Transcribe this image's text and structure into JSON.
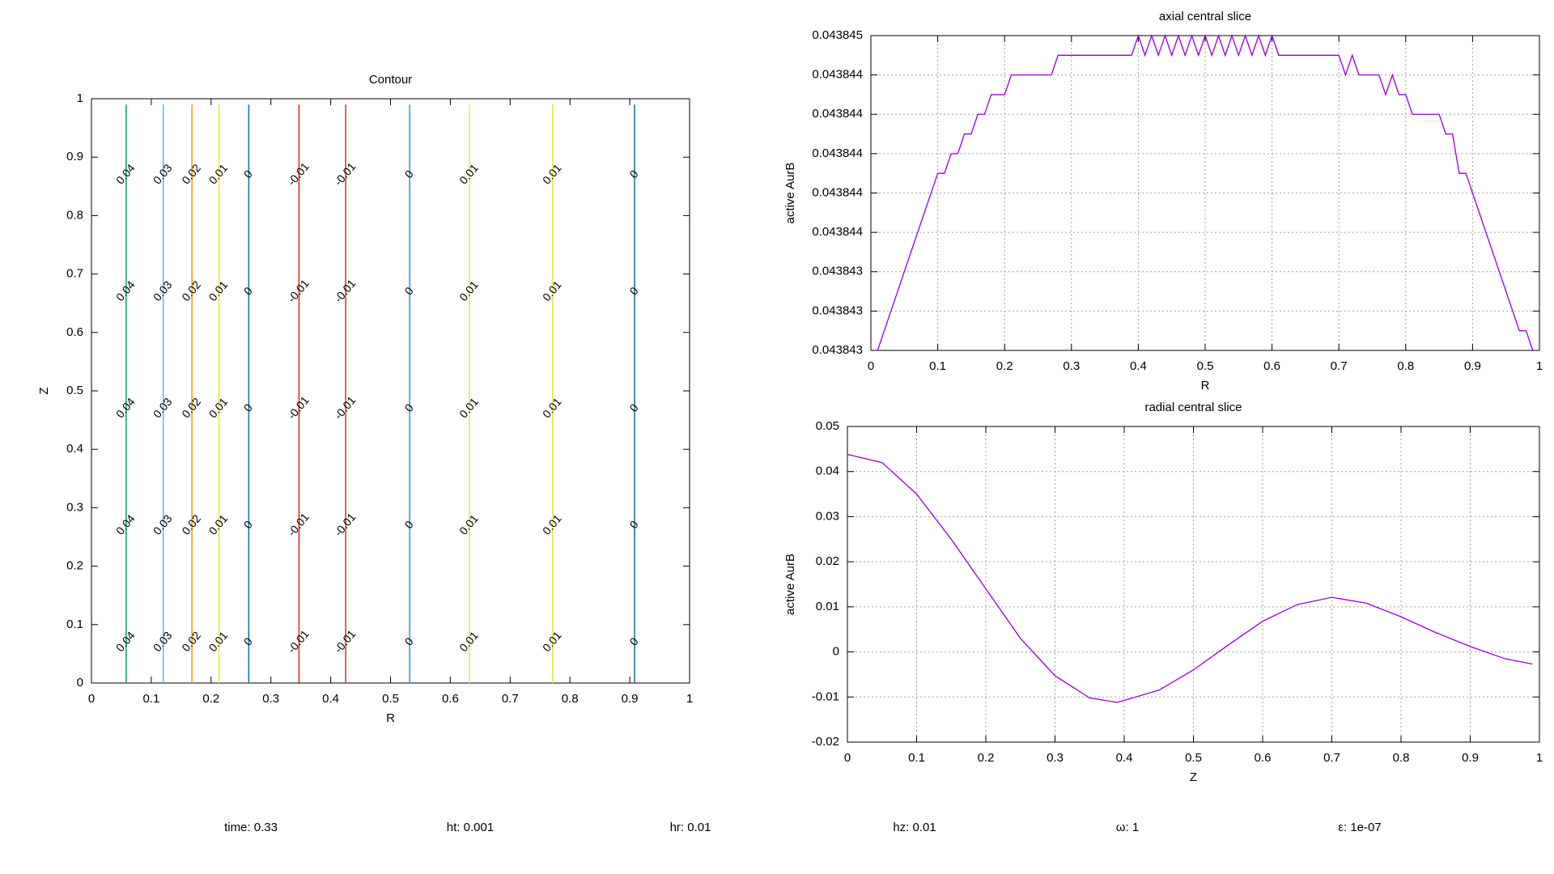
{
  "chart_data": [
    {
      "type": "contour",
      "title": "Contour",
      "xlabel": "R",
      "ylabel": "Z",
      "xlim": [
        0,
        1
      ],
      "ylim": [
        0,
        1
      ],
      "xticks": [
        0,
        0.1,
        0.2,
        0.3,
        0.4,
        0.5,
        0.6,
        0.7,
        0.8,
        0.9,
        1
      ],
      "yticks": [
        0,
        0.1,
        0.2,
        0.3,
        0.4,
        0.5,
        0.6,
        0.7,
        0.8,
        0.9,
        1
      ],
      "grid": false,
      "levels": [
        {
          "value": 0.04,
          "r": 0.058,
          "color": "#009e73"
        },
        {
          "value": 0.03,
          "r": 0.12,
          "color": "#56b4e9"
        },
        {
          "value": 0.02,
          "r": 0.168,
          "color": "#e69f00"
        },
        {
          "value": 0.01,
          "r": 0.213,
          "color": "#f0e442"
        },
        {
          "value": 0,
          "r": 0.263,
          "color": "#0072b2"
        },
        {
          "value": -0.01,
          "r": 0.347,
          "color": "#e51e10"
        },
        {
          "value": -0.01,
          "r": 0.425,
          "color": "#c0392b"
        },
        {
          "value": 0,
          "r": 0.532,
          "color": "#1f9fd8"
        },
        {
          "value": 0.01,
          "r": 0.632,
          "color": "#f0e442"
        },
        {
          "value": 0.01,
          "r": 0.771,
          "color": "#f0e442"
        },
        {
          "value": 0,
          "r": 0.908,
          "color": "#106a8a"
        }
      ]
    },
    {
      "type": "line",
      "title": "axial central slice",
      "xlabel": "R",
      "ylabel": "active AurB",
      "xlim": [
        0,
        1
      ],
      "ylim": [
        0.043843,
        0.0438446
      ],
      "xticks": [
        0,
        0.1,
        0.2,
        0.3,
        0.4,
        0.5,
        0.6,
        0.7,
        0.8,
        0.9,
        1
      ],
      "yticks": [
        0.043843,
        {
          "value": 0.0438432,
          "label": "0.043843"
        },
        {
          "value": 0.0438434,
          "label": "0.043843"
        },
        {
          "value": 0.0438436,
          "label": "0.043844"
        },
        {
          "value": 0.0438438,
          "label": "0.043844"
        },
        0.043844,
        {
          "value": 0.0438442,
          "label": "0.043844"
        },
        {
          "value": 0.0438444,
          "label": "0.043844"
        },
        {
          "value": 0.0438446,
          "label": "0.043845"
        }
      ],
      "grid": true,
      "color": "#9400d3",
      "x": [
        0.01,
        0.1,
        0.11,
        0.12,
        0.13,
        0.14,
        0.15,
        0.16,
        0.17,
        0.18,
        0.2,
        0.21,
        0.27,
        0.28,
        0.39,
        0.4,
        0.41,
        0.42,
        0.43,
        0.44,
        0.45,
        0.46,
        0.47,
        0.48,
        0.49,
        0.5,
        0.51,
        0.52,
        0.53,
        0.54,
        0.55,
        0.56,
        0.57,
        0.58,
        0.59,
        0.6,
        0.61,
        0.7,
        0.71,
        0.72,
        0.73,
        0.76,
        0.77,
        0.78,
        0.79,
        0.8,
        0.81,
        0.85,
        0.86,
        0.87,
        0.88,
        0.89,
        0.97,
        0.98,
        0.99
      ],
      "values": [
        0.043843,
        0.0438439,
        0.0438439,
        0.043844,
        0.043844,
        0.0438441,
        0.0438441,
        0.0438442,
        0.0438442,
        0.0438443,
        0.0438443,
        0.0438444,
        0.0438444,
        0.0438445,
        0.0438445,
        0.0438446,
        0.0438445,
        0.0438446,
        0.0438445,
        0.0438446,
        0.0438445,
        0.0438446,
        0.0438445,
        0.0438446,
        0.0438445,
        0.0438446,
        0.0438445,
        0.0438446,
        0.0438445,
        0.0438446,
        0.0438445,
        0.0438446,
        0.0438445,
        0.0438446,
        0.0438445,
        0.0438446,
        0.0438445,
        0.0438445,
        0.0438444,
        0.0438445,
        0.0438444,
        0.0438444,
        0.0438443,
        0.0438444,
        0.0438443,
        0.0438443,
        0.0438442,
        0.0438442,
        0.0438441,
        0.0438441,
        0.0438439,
        0.0438439,
        0.0438431,
        0.0438431,
        0.043843
      ]
    },
    {
      "type": "line",
      "title": "radial central slice",
      "xlabel": "Z",
      "ylabel": "active AurB",
      "xlim": [
        0,
        1
      ],
      "ylim": [
        -0.02,
        0.05
      ],
      "xticks": [
        0,
        0.1,
        0.2,
        0.3,
        0.4,
        0.5,
        0.6,
        0.7,
        0.8,
        0.9,
        1
      ],
      "yticks": [
        -0.02,
        -0.01,
        0,
        0.01,
        0.02,
        0.03,
        0.04,
        0.05
      ],
      "grid": true,
      "color": "#9400d3",
      "x": [
        0,
        0.05,
        0.1,
        0.15,
        0.2,
        0.25,
        0.3,
        0.35,
        0.39,
        0.45,
        0.5,
        0.55,
        0.6,
        0.65,
        0.7,
        0.75,
        0.8,
        0.85,
        0.9,
        0.95,
        0.99
      ],
      "values": [
        0.0438,
        0.042,
        0.035,
        0.025,
        0.014,
        0.003,
        -0.0053,
        -0.0102,
        -0.0112,
        -0.0085,
        -0.004,
        0.0015,
        0.0068,
        0.0105,
        0.0121,
        0.0108,
        0.0078,
        0.0043,
        0.0012,
        -0.0015,
        -0.0027
      ]
    }
  ],
  "footer": [
    "time: 0.33",
    "ht: 0.001",
    "hr: 0.01",
    "hz: 0.01",
    "ω: 1",
    "ε: 1e-07"
  ]
}
